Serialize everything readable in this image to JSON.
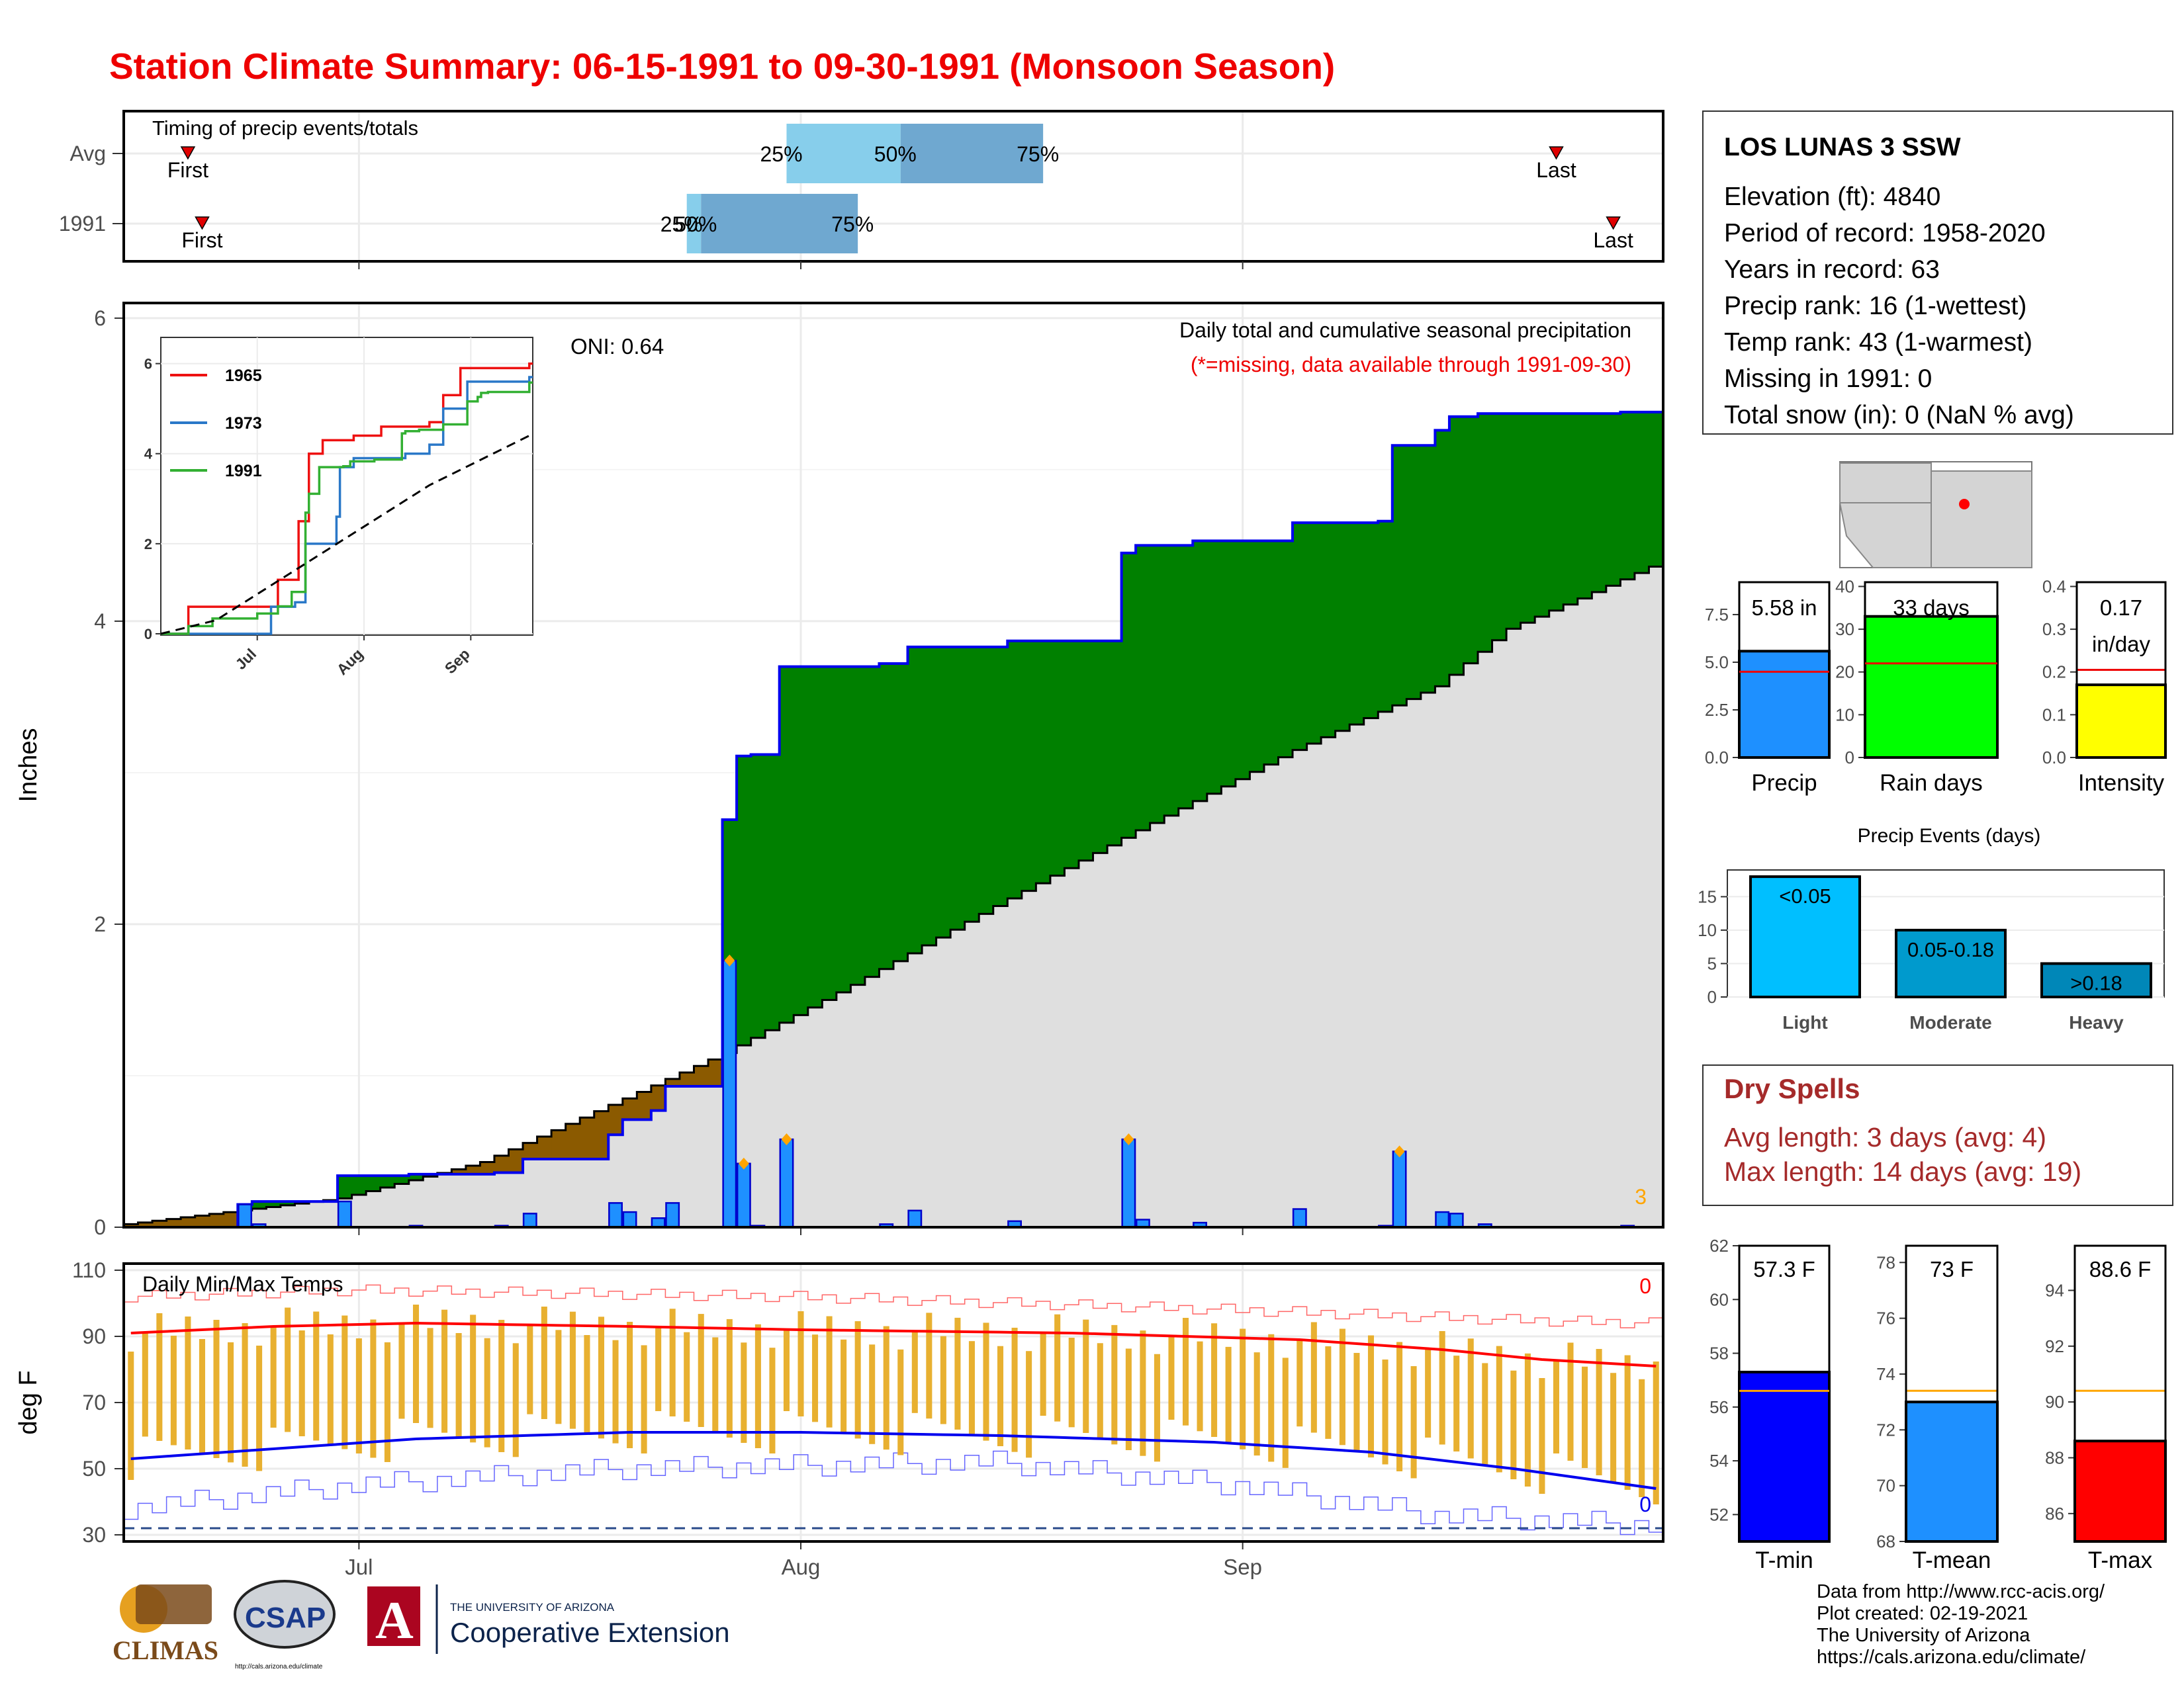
{
  "title": "Station Climate Summary: 06-15-1991 to 09-30-1991 (Monsoon Season)",
  "colors": {
    "title": "#ee0000",
    "precip_bar": "#1e90ff",
    "above_avg_fill": "#008000",
    "below_avg_fill": "#8b5a00",
    "normal_fill": "#dfdfdf",
    "tmax_line": "#ff0000",
    "tmin_line": "#0000ee",
    "temp_bar": "#e8b030",
    "dry_spells_text": "#a52a2a",
    "light_events": "#00bfff",
    "moderate_events": "#009acd",
    "heavy_events": "#0087b8"
  },
  "timing_panel": {
    "title": "Timing of precip events/totals",
    "rows": [
      {
        "label": "Avg",
        "first_label": "First",
        "last_label": "Last",
        "p25": "25%",
        "p50": "50%",
        "p75": "75%",
        "first": "1991-06-19",
        "last": "1991-09-23",
        "q25": "1991-07-31",
        "q50": "1991-08-08",
        "q75": "1991-08-18"
      },
      {
        "label": "1991",
        "first_label": "First",
        "last_label": "Last",
        "p25": "25%",
        "p50": "50%",
        "p75": "75%",
        "first": "1991-06-20",
        "last": "1991-09-27",
        "q25": "1991-07-24",
        "q50": "1991-07-25",
        "q75": "1991-08-05"
      }
    ]
  },
  "main_panel": {
    "ylabel": "Inches",
    "title_line1": "Daily total and cumulative seasonal precipitation",
    "title_line2": "(*=missing, data available through 1991-09-30)",
    "oni": "ONI: 0.64",
    "missing_count": "3"
  },
  "inset": {
    "series": [
      {
        "name": "1965",
        "color": "#ee1111"
      },
      {
        "name": "1973",
        "color": "#2a78c8"
      },
      {
        "name": "1991",
        "color": "#33b033"
      }
    ]
  },
  "temp_panel": {
    "title": "Daily Min/Max Temps",
    "ylabel": "deg F",
    "count_top": "0",
    "count_bottom": "0"
  },
  "x_axis_labels": [
    "Jul",
    "Aug",
    "Sep"
  ],
  "station_info": {
    "name": "LOS LUNAS 3 SSW",
    "lines": [
      "Elevation (ft): 4840",
      "Period of record: 1958-2020",
      "Years in record: 63",
      "Precip rank: 16 (1-wettest)",
      "Temp rank: 43 (1-warmest)",
      "Missing in 1991: 0",
      "Total snow (in): 0 (NaN % avg)"
    ]
  },
  "summary_bars": [
    {
      "key": "precip",
      "label": "Precip",
      "value_text": "5.58 in",
      "value": 5.58,
      "avg": 4.5,
      "ylim": [
        0,
        9.2
      ],
      "ticks": [
        "0.0",
        "2.5",
        "5.0",
        "7.5"
      ],
      "tick_vals": [
        0,
        2.5,
        5,
        7.5
      ],
      "color": "#1e90ff"
    },
    {
      "key": "raindays",
      "label": "Rain days",
      "value_text": "33 days",
      "value": 33,
      "avg": 22,
      "ylim": [
        0,
        41
      ],
      "ticks": [
        "0",
        "10",
        "20",
        "30",
        "40"
      ],
      "tick_vals": [
        0,
        10,
        20,
        30,
        40
      ],
      "color": "#00ff00"
    },
    {
      "key": "intensity",
      "label": "Intensity",
      "value_text": "0.17",
      "value_text2": "in/day",
      "value": 0.17,
      "avg": 0.205,
      "ylim": [
        0,
        0.41
      ],
      "ticks": [
        "0.0",
        "0.1",
        "0.2",
        "0.3",
        "0.4"
      ],
      "tick_vals": [
        0,
        0.1,
        0.2,
        0.3,
        0.4
      ],
      "color": "#ffff00"
    }
  ],
  "precip_events": {
    "title": "Precip Events (days)",
    "categories": [
      "Light",
      "Moderate",
      "Heavy"
    ],
    "bar_labels": [
      "<0.05",
      "0.05-0.18",
      ">0.18"
    ],
    "values": [
      18,
      10,
      5
    ],
    "ticks": [
      "0",
      "5",
      "10",
      "15"
    ],
    "tick_vals": [
      0,
      5,
      10,
      15
    ]
  },
  "dry_spells": {
    "title": "Dry Spells",
    "line1": "Avg length: 3 days (avg: 4)",
    "line2": "Max length: 14 days (avg: 19)"
  },
  "temp_bars": [
    {
      "key": "tmin",
      "label": "T-min",
      "value_text": "57.3 F",
      "value": 57.3,
      "avg": 56.6,
      "ylim": [
        51,
        62
      ],
      "ticks": [
        "52",
        "54",
        "56",
        "58",
        "60",
        "62"
      ],
      "tick_vals": [
        52,
        54,
        56,
        58,
        60,
        62
      ],
      "color": "#0000ff"
    },
    {
      "key": "tmean",
      "label": "T-mean",
      "value_text": "73 F",
      "value": 73.0,
      "avg": 73.4,
      "ylim": [
        68,
        78.6
      ],
      "ticks": [
        "68",
        "70",
        "72",
        "74",
        "76",
        "78"
      ],
      "tick_vals": [
        68,
        70,
        72,
        74,
        76,
        78
      ],
      "color": "#1e90ff"
    },
    {
      "key": "tmax",
      "label": "T-max",
      "value_text": "88.6 F",
      "value": 88.6,
      "avg": 90.4,
      "ylim": [
        85,
        95.6
      ],
      "ticks": [
        "86",
        "88",
        "90",
        "92",
        "94"
      ],
      "tick_vals": [
        86,
        88,
        90,
        92,
        94
      ],
      "color": "#ff0000"
    }
  ],
  "credits": [
    "Data from http://www.rcc-acis.org/",
    "Plot created: 02-19-2021",
    "The University of Arizona",
    "https://cals.arizona.edu/climate/"
  ],
  "logos": {
    "climas": "CLIMAS",
    "csap": "CSAP",
    "csap_url": "http://cals.arizona.edu/climate",
    "ua_small": "THE UNIVERSITY OF ARIZONA",
    "ua_big": "Cooperative Extension",
    "ua_letter": "A"
  },
  "chart_data": [
    {
      "type": "area",
      "name": "cumulative_precip",
      "ylabel": "Inches",
      "ylim": [
        0,
        6.1
      ],
      "x_start": "1991-06-15",
      "daily_precip": [
        {
          "date": "1991-06-23",
          "value": 0.15
        },
        {
          "date": "1991-06-24",
          "value": 0.02
        },
        {
          "date": "1991-06-30",
          "value": 0.17
        },
        {
          "date": "1991-07-05",
          "value": 0.01
        },
        {
          "date": "1991-07-11",
          "value": 0.01
        },
        {
          "date": "1991-07-13",
          "value": 0.09
        },
        {
          "date": "1991-07-19",
          "value": 0.16
        },
        {
          "date": "1991-07-20",
          "value": 0.1
        },
        {
          "date": "1991-07-22",
          "value": 0.06
        },
        {
          "date": "1991-07-23",
          "value": 0.16
        },
        {
          "date": "1991-07-27",
          "value": 1.76
        },
        {
          "date": "1991-07-28",
          "value": 0.42
        },
        {
          "date": "1991-07-29",
          "value": 0.01
        },
        {
          "date": "1991-07-31",
          "value": 0.58
        },
        {
          "date": "1991-08-07",
          "value": 0.02
        },
        {
          "date": "1991-08-09",
          "value": 0.11
        },
        {
          "date": "1991-08-16",
          "value": 0.04
        },
        {
          "date": "1991-08-24",
          "value": 0.58
        },
        {
          "date": "1991-08-25",
          "value": 0.05
        },
        {
          "date": "1991-08-29",
          "value": 0.03
        },
        {
          "date": "1991-09-05",
          "value": 0.12
        },
        {
          "date": "1991-09-11",
          "value": 0.01
        },
        {
          "date": "1991-09-12",
          "value": 0.5
        },
        {
          "date": "1991-09-15",
          "value": 0.1
        },
        {
          "date": "1991-09-16",
          "value": 0.09
        },
        {
          "date": "1991-09-18",
          "value": 0.02
        },
        {
          "date": "1991-09-28",
          "value": 0.01
        }
      ],
      "normal_cumulative": [
        {
          "date": "1991-06-15",
          "value": 0.02
        },
        {
          "date": "1991-06-30",
          "value": 0.19
        },
        {
          "date": "1991-07-10",
          "value": 0.43
        },
        {
          "date": "1991-07-20",
          "value": 0.85
        },
        {
          "date": "1991-07-27",
          "value": 1.15
        },
        {
          "date": "1991-08-05",
          "value": 1.6
        },
        {
          "date": "1991-08-15",
          "value": 2.12
        },
        {
          "date": "1991-08-25",
          "value": 2.62
        },
        {
          "date": "1991-09-05",
          "value": 3.15
        },
        {
          "date": "1991-09-15",
          "value": 3.57
        },
        {
          "date": "1991-09-20",
          "value": 3.95
        },
        {
          "date": "1991-09-25",
          "value": 4.15
        },
        {
          "date": "1991-09-30",
          "value": 4.36
        }
      ],
      "oni": 0.64
    },
    {
      "type": "line",
      "name": "inset_cumulative_comparison",
      "ylim": [
        0,
        6.2
      ],
      "x_ticks": [
        "Jul",
        "Aug",
        "Sep"
      ],
      "y_ticks": [
        0,
        2,
        4,
        6
      ],
      "series": [
        {
          "name": "1965",
          "points": [
            [
              "1991-06-15",
              0
            ],
            [
              "1991-06-23",
              0.6
            ],
            [
              "1991-07-10",
              0.6
            ],
            [
              "1991-07-19",
              1.2
            ],
            [
              "1991-07-25",
              2.5
            ],
            [
              "1991-07-28",
              4.0
            ],
            [
              "1991-08-01",
              4.3
            ],
            [
              "1991-08-10",
              4.4
            ],
            [
              "1991-08-18",
              4.6
            ],
            [
              "1991-09-01",
              4.7
            ],
            [
              "1991-09-05",
              5.3
            ],
            [
              "1991-09-10",
              5.9
            ],
            [
              "1991-09-30",
              6.0
            ]
          ]
        },
        {
          "name": "1973",
          "points": [
            [
              "1991-06-15",
              0
            ],
            [
              "1991-07-15",
              0
            ],
            [
              "1991-07-17",
              0.6
            ],
            [
              "1991-07-24",
              0.7
            ],
            [
              "1991-07-27",
              2.0
            ],
            [
              "1991-08-05",
              2.6
            ],
            [
              "1991-08-06",
              3.7
            ],
            [
              "1991-08-10",
              3.9
            ],
            [
              "1991-08-25",
              4.0
            ],
            [
              "1991-09-01",
              4.2
            ],
            [
              "1991-09-05",
              5.0
            ],
            [
              "1991-09-12",
              5.6
            ],
            [
              "1991-09-30",
              5.7
            ]
          ]
        },
        {
          "name": "1991",
          "points": [
            [
              "1991-06-15",
              0
            ],
            [
              "1991-06-23",
              0.17
            ],
            [
              "1991-06-30",
              0.34
            ],
            [
              "1991-07-13",
              0.45
            ],
            [
              "1991-07-19",
              0.61
            ],
            [
              "1991-07-23",
              0.93
            ],
            [
              "1991-07-27",
              2.69
            ],
            [
              "1991-07-28",
              3.11
            ],
            [
              "1991-07-31",
              3.7
            ],
            [
              "1991-08-07",
              3.72
            ],
            [
              "1991-08-09",
              3.83
            ],
            [
              "1991-08-16",
              3.87
            ],
            [
              "1991-08-24",
              4.45
            ],
            [
              "1991-08-25",
              4.5
            ],
            [
              "1991-08-29",
              4.53
            ],
            [
              "1991-09-05",
              4.65
            ],
            [
              "1991-09-12",
              5.16
            ],
            [
              "1991-09-15",
              5.26
            ],
            [
              "1991-09-16",
              5.35
            ],
            [
              "1991-09-18",
              5.37
            ],
            [
              "1991-09-30",
              5.58
            ]
          ]
        },
        {
          "name": "Average",
          "dashed": true,
          "points": [
            [
              "1991-06-15",
              0
            ],
            [
              "1991-07-01",
              0.3
            ],
            [
              "1991-08-01",
              1.8
            ],
            [
              "1991-09-01",
              3.3
            ],
            [
              "1991-09-30",
              4.4
            ]
          ]
        }
      ]
    },
    {
      "type": "line",
      "name": "daily_min_max_temps",
      "ylabel": "deg F",
      "ylim": [
        28,
        112
      ],
      "y_ticks": [
        30,
        50,
        70,
        90,
        110
      ],
      "freeze_line": 32,
      "tmax_smooth": [
        [
          "1991-06-15",
          91
        ],
        [
          "1991-06-25",
          93
        ],
        [
          "1991-07-05",
          94
        ],
        [
          "1991-07-20",
          93
        ],
        [
          "1991-08-01",
          92
        ],
        [
          "1991-08-20",
          91
        ],
        [
          "1991-09-05",
          89
        ],
        [
          "1991-09-15",
          86
        ],
        [
          "1991-09-22",
          83
        ],
        [
          "1991-09-30",
          81
        ]
      ],
      "tmin_smooth": [
        [
          "1991-06-15",
          53
        ],
        [
          "1991-06-25",
          56
        ],
        [
          "1991-07-05",
          59
        ],
        [
          "1991-07-20",
          61
        ],
        [
          "1991-08-01",
          61
        ],
        [
          "1991-08-15",
          60
        ],
        [
          "1991-08-30",
          58
        ],
        [
          "1991-09-10",
          55
        ],
        [
          "1991-09-20",
          50
        ],
        [
          "1991-09-30",
          44
        ]
      ],
      "record_high": [
        [
          "1991-06-15",
          102
        ],
        [
          "1991-07-01",
          104
        ],
        [
          "1991-08-01",
          102
        ],
        [
          "1991-09-01",
          98
        ],
        [
          "1991-09-20",
          95
        ],
        [
          "1991-09-30",
          94
        ]
      ],
      "record_low": [
        [
          "1991-06-15",
          38
        ],
        [
          "1991-07-01",
          45
        ],
        [
          "1991-07-20",
          50
        ],
        [
          "1991-08-15",
          52
        ],
        [
          "1991-09-01",
          45
        ],
        [
          "1991-09-15",
          36
        ],
        [
          "1991-09-30",
          33
        ]
      ]
    }
  ]
}
